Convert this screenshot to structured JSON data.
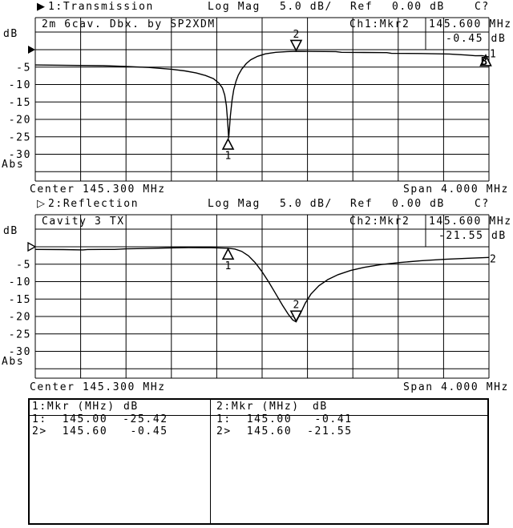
{
  "chart_data": [
    {
      "type": "line",
      "channel": 1,
      "header": {
        "marker_glyph": "▶",
        "title": "1:Transmission",
        "format": "Log Mag",
        "scale": "5.0 dB/",
        "ref_label": "Ref",
        "ref_value": "0.00 dB",
        "correction": "C?"
      },
      "annotation": "2m 6cav. Dbx. by SP2XDM",
      "readout": {
        "label": "Ch1:Mkr2",
        "freq": "145.600 MHz",
        "value": "-0.45 dB"
      },
      "ylabel": "dB",
      "abs_label": "Abs",
      "yticks": [
        "-5",
        "-10",
        "-15",
        "-20",
        "-25",
        "-30"
      ],
      "scale_db_per_div": 5,
      "ref_db": 0,
      "center_mhz": 145.3,
      "span_mhz": 4.0,
      "center_label": "Center 145.300 MHz",
      "span_label": "Span 4.000 MHz",
      "ref_marker_style": "filled",
      "trace": [
        [
          143.3,
          -4.4
        ],
        [
          143.6,
          -4.5
        ],
        [
          143.9,
          -4.6
        ],
        [
          144.1,
          -4.8
        ],
        [
          144.3,
          -5.1
        ],
        [
          144.5,
          -5.6
        ],
        [
          144.62,
          -6.1
        ],
        [
          144.72,
          -6.7
        ],
        [
          144.8,
          -7.4
        ],
        [
          144.87,
          -8.3
        ],
        [
          144.92,
          -9.6
        ],
        [
          144.95,
          -11.0
        ],
        [
          144.97,
          -13.0
        ],
        [
          144.985,
          -16.0
        ],
        [
          144.995,
          -20.0
        ],
        [
          145.005,
          -25.42
        ],
        [
          145.02,
          -19.0
        ],
        [
          145.035,
          -14.5
        ],
        [
          145.05,
          -11.5
        ],
        [
          145.07,
          -9.0
        ],
        [
          145.09,
          -7.3
        ],
        [
          145.12,
          -5.6
        ],
        [
          145.16,
          -4.0
        ],
        [
          145.2,
          -2.9
        ],
        [
          145.26,
          -1.9
        ],
        [
          145.33,
          -1.2
        ],
        [
          145.42,
          -0.75
        ],
        [
          145.52,
          -0.55
        ],
        [
          145.6,
          -0.45
        ],
        [
          145.75,
          -0.5
        ],
        [
          145.95,
          -0.55
        ],
        [
          146.0,
          -0.75
        ],
        [
          146.2,
          -0.8
        ],
        [
          146.4,
          -0.85
        ],
        [
          146.44,
          -1.05
        ],
        [
          146.7,
          -1.1
        ],
        [
          146.95,
          -1.25
        ],
        [
          147.1,
          -1.55
        ],
        [
          147.18,
          -1.75
        ],
        [
          147.24,
          -1.7
        ],
        [
          147.3,
          -2.1
        ]
      ],
      "markers": [
        {
          "n": "1",
          "mhz": 145.0,
          "db": -25.42,
          "dir": "up"
        },
        {
          "n": "2",
          "mhz": 145.6,
          "db": -0.45,
          "dir": "down"
        }
      ],
      "right_edge": {
        "trace_label": "1",
        "label_db": -1.3,
        "triangle_db": -1.6,
        "glyph": "B",
        "glyph_db": -3.5
      }
    },
    {
      "type": "line",
      "channel": 2,
      "header": {
        "marker_glyph": "▷",
        "title": "2:Reflection",
        "format": "Log Mag",
        "scale": "5.0 dB/",
        "ref_label": "Ref",
        "ref_value": "0.00 dB",
        "correction": "C?"
      },
      "annotation": "Cavity 3 TX",
      "readout": {
        "label": "Ch2:Mkr2",
        "freq": "145.600 MHz",
        "value": "-21.55 dB"
      },
      "ylabel": "dB",
      "abs_label": "Abs",
      "yticks": [
        "-5",
        "-10",
        "-15",
        "-20",
        "-25",
        "-30"
      ],
      "scale_db_per_div": 5,
      "ref_db": 0,
      "center_mhz": 145.3,
      "span_mhz": 4.0,
      "center_label": "Center 145.300 MHz",
      "span_label": "Span 4.000 MHz",
      "ref_marker_style": "hollow",
      "trace": [
        [
          143.3,
          -0.75
        ],
        [
          143.55,
          -0.8
        ],
        [
          143.72,
          -0.9
        ],
        [
          143.76,
          -0.78
        ],
        [
          144.0,
          -0.75
        ],
        [
          144.1,
          -0.6
        ],
        [
          144.25,
          -0.5
        ],
        [
          144.45,
          -0.35
        ],
        [
          144.65,
          -0.25
        ],
        [
          144.85,
          -0.28
        ],
        [
          145.0,
          -0.41
        ],
        [
          145.06,
          -0.65
        ],
        [
          145.12,
          -1.3
        ],
        [
          145.18,
          -2.6
        ],
        [
          145.24,
          -4.6
        ],
        [
          145.3,
          -7.2
        ],
        [
          145.36,
          -10.2
        ],
        [
          145.42,
          -13.5
        ],
        [
          145.48,
          -16.8
        ],
        [
          145.53,
          -19.3
        ],
        [
          145.57,
          -21.0
        ],
        [
          145.6,
          -21.55
        ],
        [
          145.64,
          -19.0
        ],
        [
          145.68,
          -16.2
        ],
        [
          145.73,
          -13.6
        ],
        [
          145.8,
          -11.2
        ],
        [
          145.88,
          -9.4
        ],
        [
          145.97,
          -8.0
        ],
        [
          146.08,
          -6.8
        ],
        [
          146.2,
          -5.9
        ],
        [
          146.35,
          -5.1
        ],
        [
          146.52,
          -4.5
        ],
        [
          146.7,
          -4.0
        ],
        [
          146.9,
          -3.6
        ],
        [
          147.1,
          -3.3
        ],
        [
          147.3,
          -3.05
        ]
      ],
      "markers": [
        {
          "n": "1",
          "mhz": 145.0,
          "db": -0.41,
          "dir": "up"
        },
        {
          "n": "2",
          "mhz": 145.6,
          "db": -21.55,
          "dir": "down"
        }
      ],
      "right_edge": {
        "trace_label": "2",
        "label_db": -3.6
      }
    }
  ],
  "marker_table": {
    "columns": [
      {
        "header_left": "1:Mkr (MHz)",
        "header_db": "dB",
        "rows": [
          {
            "id": "1:",
            "freq": "145.00",
            "db": "-25.42"
          },
          {
            "id": "2>",
            "freq": "145.60",
            "db": "-0.45"
          }
        ]
      },
      {
        "header_left": "2:Mkr (MHz)",
        "header_db": "dB",
        "rows": [
          {
            "id": "1:",
            "freq": "145.00",
            "db": "-0.41"
          },
          {
            "id": "2>",
            "freq": "145.60",
            "db": "-21.55"
          }
        ]
      }
    ]
  }
}
